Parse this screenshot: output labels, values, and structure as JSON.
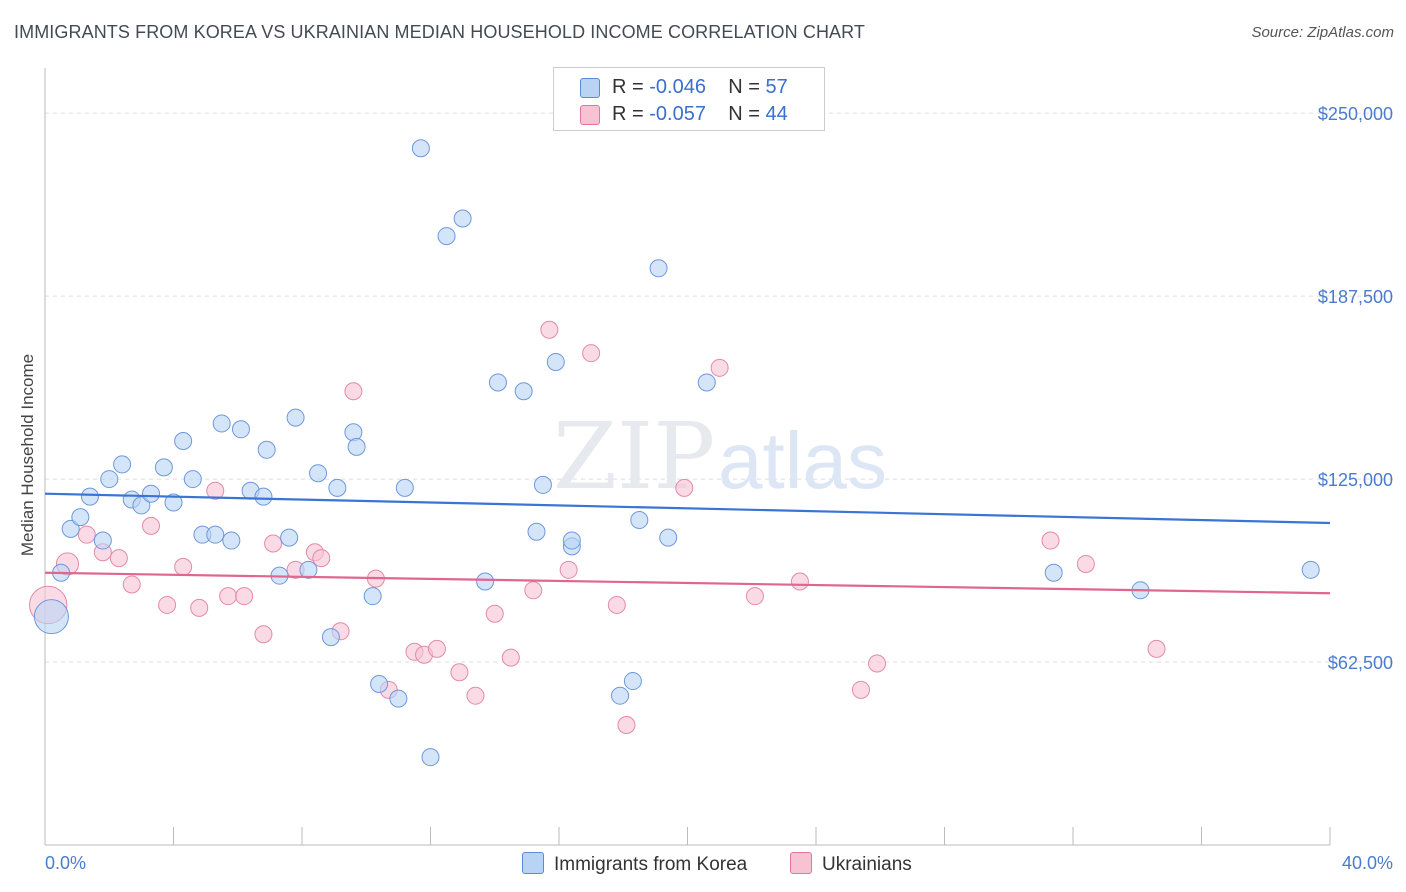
{
  "header": {
    "title": "IMMIGRANTS FROM KOREA VS UKRAINIAN MEDIAN HOUSEHOLD INCOME CORRELATION CHART",
    "source": "Source: ZipAtlas.com"
  },
  "watermark": {
    "zip": "ZIP",
    "atlas": "atlas"
  },
  "colors": {
    "blue": "#3a74d4",
    "blue_fill": "#b9d3f5",
    "pink": "#e0658f",
    "pink_fill": "#f7c3d3",
    "tick_text": "#4a7bd0"
  },
  "legend": {
    "rows": [
      {
        "r_label": "R =",
        "r_value": "-0.046",
        "n_label": "N =",
        "n_value": "57"
      },
      {
        "r_label": "R =",
        "r_value": "-0.057",
        "n_label": "N =",
        "n_value": "44"
      }
    ],
    "series_labels": [
      "Immigrants from Korea",
      "Ukrainians"
    ]
  },
  "chart_data": {
    "type": "scatter",
    "title": "IMMIGRANTS FROM KOREA VS UKRAINIAN MEDIAN HOUSEHOLD INCOME CORRELATION CHART",
    "xlabel": "",
    "ylabel": "Median Household Income",
    "xlim": [
      0,
      40
    ],
    "ylim": [
      0,
      262000
    ],
    "x_tick_labels": [
      "0.0%",
      "40.0%"
    ],
    "y_ticks": [
      62500,
      125000,
      187500,
      250000
    ],
    "y_tick_labels": [
      "$62,500",
      "$125,000",
      "$187,500",
      "$250,000"
    ],
    "grid": true,
    "legend_position": "top-center",
    "series": [
      {
        "name": "Immigrants from Korea",
        "trend": {
          "x": [
            0,
            40
          ],
          "y": [
            120000,
            110000
          ]
        },
        "points": [
          [
            0.2,
            78000,
            2
          ],
          [
            0.5,
            93000,
            1
          ],
          [
            0.8,
            108000,
            1
          ],
          [
            1.1,
            112000,
            1
          ],
          [
            1.4,
            119000,
            1
          ],
          [
            1.8,
            104000,
            1
          ],
          [
            2.0,
            125000,
            1
          ],
          [
            2.4,
            130000,
            1
          ],
          [
            2.7,
            118000,
            1
          ],
          [
            3.0,
            116000,
            1
          ],
          [
            3.3,
            120000,
            1
          ],
          [
            3.7,
            129000,
            1
          ],
          [
            4.0,
            117000,
            1
          ],
          [
            4.3,
            138000,
            1
          ],
          [
            4.6,
            125000,
            1
          ],
          [
            4.9,
            106000,
            1
          ],
          [
            5.3,
            106000,
            1
          ],
          [
            5.5,
            144000,
            1
          ],
          [
            5.8,
            104000,
            1
          ],
          [
            6.1,
            142000,
            1
          ],
          [
            6.4,
            121000,
            1
          ],
          [
            6.8,
            119000,
            1
          ],
          [
            6.9,
            135000,
            1
          ],
          [
            7.3,
            92000,
            1
          ],
          [
            7.6,
            105000,
            1
          ],
          [
            7.8,
            146000,
            1
          ],
          [
            8.2,
            94000,
            1
          ],
          [
            8.5,
            127000,
            1
          ],
          [
            8.9,
            71000,
            1
          ],
          [
            9.1,
            122000,
            1
          ],
          [
            9.6,
            141000,
            1
          ],
          [
            9.7,
            136000,
            1
          ],
          [
            10.2,
            85000,
            1
          ],
          [
            10.4,
            55000,
            1
          ],
          [
            11.0,
            50000,
            1
          ],
          [
            11.2,
            122000,
            1
          ],
          [
            11.7,
            238000,
            1
          ],
          [
            12.0,
            30000,
            1
          ],
          [
            12.5,
            208000,
            1
          ],
          [
            13.0,
            214000,
            1
          ],
          [
            13.7,
            90000,
            1
          ],
          [
            14.1,
            158000,
            1
          ],
          [
            14.9,
            155000,
            1
          ],
          [
            15.3,
            107000,
            1
          ],
          [
            15.5,
            123000,
            1
          ],
          [
            15.9,
            165000,
            1
          ],
          [
            16.4,
            102000,
            1
          ],
          [
            16.4,
            104000,
            1
          ],
          [
            17.9,
            51000,
            1
          ],
          [
            18.3,
            56000,
            1
          ],
          [
            18.5,
            111000,
            1
          ],
          [
            19.1,
            197000,
            1
          ],
          [
            19.4,
            105000,
            1
          ],
          [
            20.6,
            158000,
            1
          ],
          [
            31.4,
            93000,
            1
          ],
          [
            34.1,
            87000,
            1
          ],
          [
            39.4,
            94000,
            1
          ]
        ]
      },
      {
        "name": "Ukrainians",
        "trend": {
          "x": [
            0,
            40
          ],
          "y": [
            93000,
            86000
          ]
        },
        "points": [
          [
            0.1,
            82000,
            2.2
          ],
          [
            0.7,
            96000,
            1.3
          ],
          [
            1.3,
            106000,
            1
          ],
          [
            1.8,
            100000,
            1
          ],
          [
            2.3,
            98000,
            1
          ],
          [
            2.7,
            89000,
            1
          ],
          [
            3.3,
            109000,
            1
          ],
          [
            3.8,
            82000,
            1
          ],
          [
            4.3,
            95000,
            1
          ],
          [
            4.8,
            81000,
            1
          ],
          [
            5.3,
            121000,
            1
          ],
          [
            5.7,
            85000,
            1
          ],
          [
            6.2,
            85000,
            1
          ],
          [
            6.8,
            72000,
            1
          ],
          [
            7.1,
            103000,
            1
          ],
          [
            7.8,
            94000,
            1
          ],
          [
            8.4,
            100000,
            1
          ],
          [
            8.6,
            98000,
            1
          ],
          [
            9.2,
            73000,
            1
          ],
          [
            9.6,
            155000,
            1
          ],
          [
            10.3,
            91000,
            1
          ],
          [
            10.7,
            53000,
            1
          ],
          [
            11.5,
            66000,
            1
          ],
          [
            11.8,
            65000,
            1
          ],
          [
            12.2,
            67000,
            1
          ],
          [
            12.9,
            59000,
            1
          ],
          [
            13.4,
            51000,
            1
          ],
          [
            14.0,
            79000,
            1
          ],
          [
            14.5,
            64000,
            1
          ],
          [
            15.2,
            87000,
            1
          ],
          [
            15.7,
            176000,
            1
          ],
          [
            16.3,
            94000,
            1
          ],
          [
            17.0,
            168000,
            1
          ],
          [
            17.8,
            82000,
            1
          ],
          [
            18.1,
            41000,
            1
          ],
          [
            19.9,
            122000,
            1
          ],
          [
            21.0,
            163000,
            1
          ],
          [
            22.1,
            85000,
            1
          ],
          [
            23.5,
            90000,
            1
          ],
          [
            25.4,
            53000,
            1
          ],
          [
            25.9,
            62000,
            1
          ],
          [
            31.3,
            104000,
            1
          ],
          [
            32.4,
            96000,
            1
          ],
          [
            34.6,
            67000,
            1
          ]
        ]
      }
    ]
  }
}
